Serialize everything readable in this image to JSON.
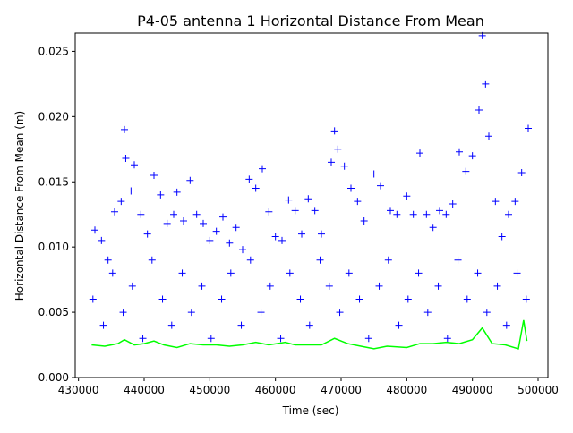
{
  "chart_data": {
    "type": "scatter",
    "title": "P4-05 antenna 1 Horizontal Distance From Mean",
    "x_label": "Time (sec)",
    "y_label": "Horizontal Distance From Mean (m)",
    "xlim": [
      429500,
      501500
    ],
    "ylim": [
      0,
      0.0264
    ],
    "xticks": [
      430000,
      440000,
      450000,
      460000,
      470000,
      480000,
      490000,
      500000
    ],
    "yticks": [
      {
        "value": 0,
        "label": "0.000"
      },
      {
        "value": 0.005,
        "label": "0.005"
      },
      {
        "value": 0.01,
        "label": "0.010"
      },
      {
        "value": 0.015,
        "label": "0.015"
      },
      {
        "value": 0.02,
        "label": "0.020"
      },
      {
        "value": 0.025,
        "label": "0.025"
      }
    ],
    "series": [
      {
        "color": "#0000ff",
        "marker": "+",
        "x": [
          432500,
          433500,
          434500,
          435500,
          436500,
          437000,
          437200,
          438000,
          438500,
          439500,
          440500,
          441500,
          442500,
          443500,
          444500,
          445000,
          446000,
          447000,
          448000,
          449000,
          450000,
          451000,
          452000,
          453000,
          454000,
          455000,
          456000,
          457000,
          458000,
          459000,
          460000,
          461000,
          462000,
          463000,
          464000,
          465000,
          466000,
          467000,
          468500,
          469000,
          469500,
          470500,
          471500,
          472500,
          473500,
          475000,
          476000,
          477500,
          478500,
          480000,
          481000,
          482000,
          483000,
          484000,
          485000,
          486000,
          487000,
          488000,
          489000,
          490000,
          491000,
          491500,
          492000,
          492500,
          493500,
          494500,
          495500,
          496500,
          497500,
          498500,
          432200,
          433800,
          435200,
          436800,
          438200,
          439800,
          441200,
          442800,
          444200,
          445800,
          447200,
          448800,
          450200,
          451800,
          453200,
          454800,
          456200,
          457800,
          459200,
          460800,
          462200,
          463800,
          465200,
          466800,
          468200,
          469800,
          471200,
          472800,
          474200,
          475800,
          477200,
          478800,
          480200,
          481800,
          483200,
          484800,
          486200,
          487800,
          489200,
          490800,
          492200,
          493800,
          495200,
          496800,
          498200
        ],
        "values": [
          0.0113,
          0.0105,
          0.009,
          0.0127,
          0.0135,
          0.019,
          0.0168,
          0.0143,
          0.0163,
          0.0125,
          0.011,
          0.0155,
          0.014,
          0.0118,
          0.0125,
          0.0142,
          0.012,
          0.0151,
          0.0125,
          0.0118,
          0.0105,
          0.0112,
          0.0123,
          0.0103,
          0.0115,
          0.0098,
          0.0152,
          0.0145,
          0.016,
          0.0127,
          0.0108,
          0.0105,
          0.0136,
          0.0128,
          0.011,
          0.0137,
          0.0128,
          0.011,
          0.0165,
          0.0189,
          0.0175,
          0.0162,
          0.0145,
          0.0135,
          0.012,
          0.0156,
          0.0147,
          0.0128,
          0.0125,
          0.0139,
          0.0125,
          0.0172,
          0.0125,
          0.0115,
          0.0128,
          0.0125,
          0.0133,
          0.0173,
          0.0158,
          0.017,
          0.0205,
          0.0262,
          0.0225,
          0.0185,
          0.0135,
          0.0108,
          0.0125,
          0.0135,
          0.0157,
          0.0191,
          0.006,
          0.004,
          0.008,
          0.005,
          0.007,
          0.003,
          0.009,
          0.006,
          0.004,
          0.008,
          0.005,
          0.007,
          0.003,
          0.006,
          0.008,
          0.004,
          0.009,
          0.005,
          0.007,
          0.003,
          0.008,
          0.006,
          0.004,
          0.009,
          0.007,
          0.005,
          0.008,
          0.006,
          0.003,
          0.007,
          0.009,
          0.004,
          0.006,
          0.008,
          0.005,
          0.007,
          0.003,
          0.009,
          0.006,
          0.008,
          0.005,
          0.007,
          0.004,
          0.008,
          0.006
        ]
      },
      {
        "color": "#00ff00",
        "marker": "line",
        "x": [
          432000,
          434000,
          436000,
          437000,
          438500,
          440000,
          441500,
          443000,
          445000,
          447000,
          449000,
          451000,
          453000,
          455000,
          457000,
          459000,
          461500,
          463000,
          465000,
          467000,
          469000,
          471000,
          473000,
          475000,
          477000,
          480000,
          482000,
          484000,
          486000,
          488000,
          490000,
          491500,
          493000,
          495000,
          497000,
          497800,
          498300
        ],
        "values": [
          0.0025,
          0.0024,
          0.0026,
          0.0029,
          0.0025,
          0.0026,
          0.0028,
          0.0025,
          0.0023,
          0.0026,
          0.0025,
          0.0025,
          0.0024,
          0.0025,
          0.0027,
          0.0025,
          0.0027,
          0.0025,
          0.0025,
          0.0025,
          0.003,
          0.0026,
          0.0024,
          0.0022,
          0.0024,
          0.0023,
          0.0026,
          0.0026,
          0.0027,
          0.0026,
          0.0029,
          0.0038,
          0.0026,
          0.0025,
          0.0022,
          0.0044,
          0.0028
        ]
      }
    ]
  }
}
